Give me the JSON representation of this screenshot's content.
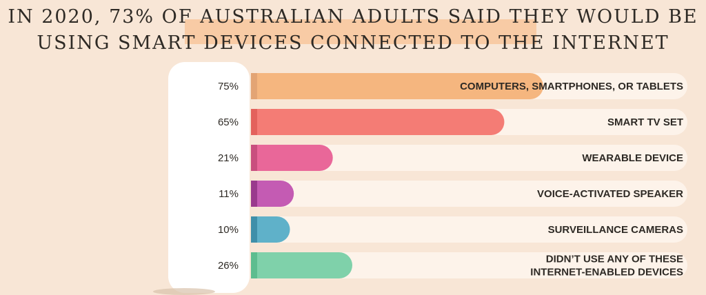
{
  "chart_data": {
    "type": "bar",
    "orientation": "horizontal",
    "title": "In 2020, 73% of Australian adults said they would be using smart devices connected to the internet",
    "xlim": [
      0,
      100
    ],
    "categories": [
      "COMPUTERS, SMARTPHONES, OR TABLETS",
      "SMART TV SET",
      "WEARABLE DEVICE",
      "VOICE-ACTIVATED SPEAKER",
      "SURVEILLANCE CAMERAS",
      "DIDN’T USE ANY OF THESE INTERNET-ENABLED DEVICES"
    ],
    "category_lines": [
      [
        "COMPUTERS, SMARTPHONES, OR TABLETS"
      ],
      [
        "SMART TV SET"
      ],
      [
        "WEARABLE DEVICE"
      ],
      [
        "VOICE-ACTIVATED SPEAKER"
      ],
      [
        "SURVEILLANCE CAMERAS"
      ],
      [
        "DIDN’T USE ANY OF THESE",
        "INTERNET-ENABLED DEVICES"
      ]
    ],
    "values": [
      75,
      65,
      21,
      11,
      10,
      26
    ],
    "value_labels": [
      "75%",
      "65%",
      "21%",
      "11%",
      "10%",
      "26%"
    ],
    "colors": [
      "#f5b67f",
      "#f47c75",
      "#e96799",
      "#c45bb3",
      "#5fb1c9",
      "#7fd1aa"
    ],
    "accent_colors": [
      "#e3a474",
      "#e3625c",
      "#c94f7e",
      "#9a3a8d",
      "#3f8fa9",
      "#5dbd8f"
    ],
    "track_color": "#fdf3ea"
  }
}
